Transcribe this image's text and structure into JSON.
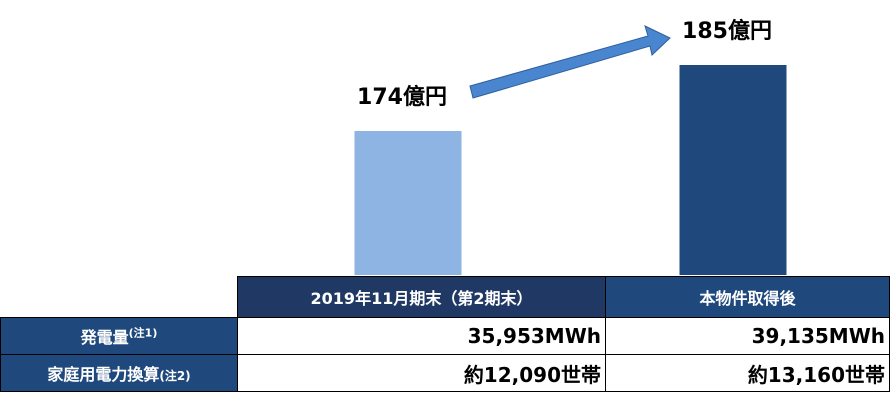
{
  "chart_data": {
    "type": "bar",
    "categories": [
      "2019年11月期末（第2期末）",
      "本物件取得後"
    ],
    "values": [
      174,
      185
    ],
    "value_labels": [
      "174億円",
      "185億円"
    ],
    "colors": [
      "#8eb4e3",
      "#1f497d"
    ],
    "ylim": [
      150,
      190
    ]
  },
  "table": {
    "rows": [
      {
        "label": "発電量",
        "note": "(注1)",
        "values": [
          "35,953MWh",
          "39,135MWh"
        ]
      },
      {
        "label": "家庭用電力換算",
        "note": "(注2)",
        "values": [
          "約12,090世帯",
          "約13,160世帯"
        ]
      }
    ]
  }
}
